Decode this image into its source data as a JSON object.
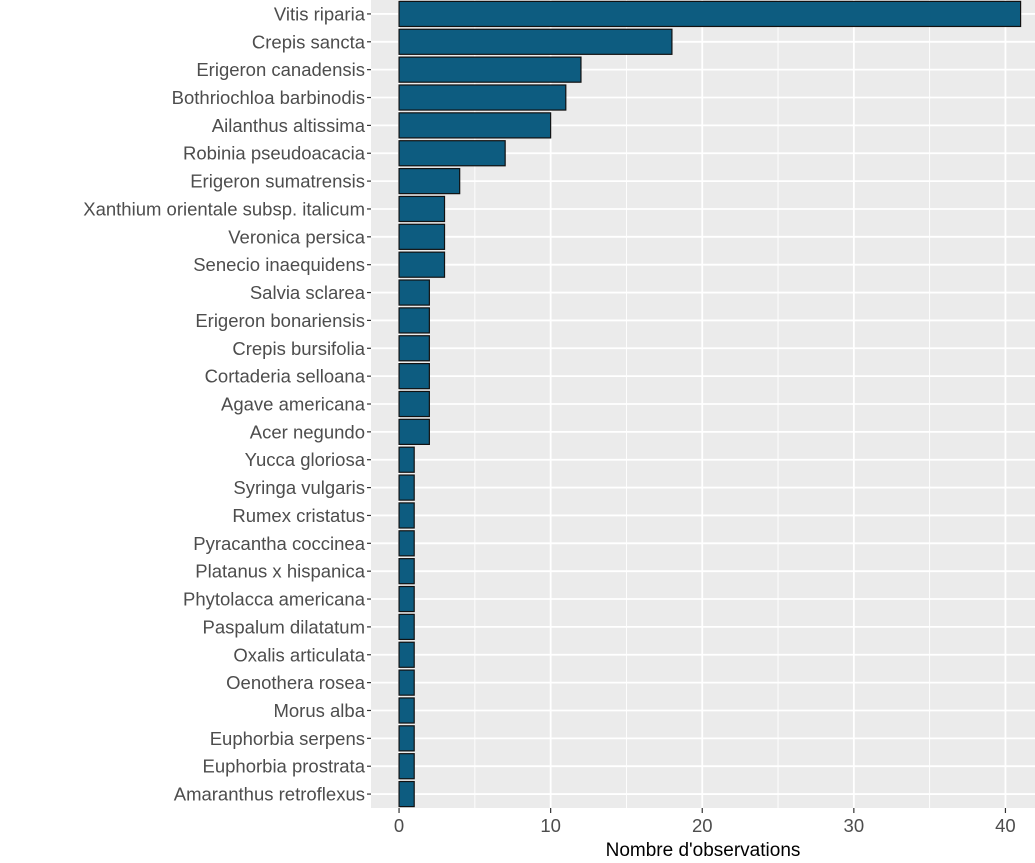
{
  "chart_data": {
    "type": "bar",
    "orientation": "horizontal",
    "categories": [
      "Vitis riparia",
      "Crepis sancta",
      "Erigeron canadensis",
      "Bothriochloa barbinodis",
      "Ailanthus altissima",
      "Robinia pseudoacacia",
      "Erigeron sumatrensis",
      "Xanthium orientale subsp. italicum",
      "Veronica persica",
      "Senecio inaequidens",
      "Salvia sclarea",
      "Erigeron bonariensis",
      "Crepis bursifolia",
      "Cortaderia selloana",
      "Agave americana",
      "Acer negundo",
      "Yucca gloriosa",
      "Syringa vulgaris",
      "Rumex cristatus",
      "Pyracantha coccinea",
      "Platanus x hispanica",
      "Phytolacca americana",
      "Paspalum dilatatum",
      "Oxalis articulata",
      "Oenothera rosea",
      "Morus alba",
      "Euphorbia serpens",
      "Euphorbia prostrata",
      "Amaranthus retroflexus"
    ],
    "values": [
      41,
      18,
      12,
      11,
      10,
      7,
      4,
      3,
      3,
      3,
      2,
      2,
      2,
      2,
      2,
      2,
      1,
      1,
      1,
      1,
      1,
      1,
      1,
      1,
      1,
      1,
      1,
      1,
      1
    ],
    "xlabel": "Nombre d'observations",
    "ylabel": "",
    "xlim": [
      -1.85,
      41.95
    ],
    "xticks": [
      0,
      10,
      20,
      30,
      40
    ],
    "grid": true,
    "legend": "none",
    "colors": {
      "bar_fill": "#0d5c80",
      "bar_stroke": "#111111",
      "panel_bg": "#ebebeb",
      "grid": "#ffffff"
    }
  }
}
